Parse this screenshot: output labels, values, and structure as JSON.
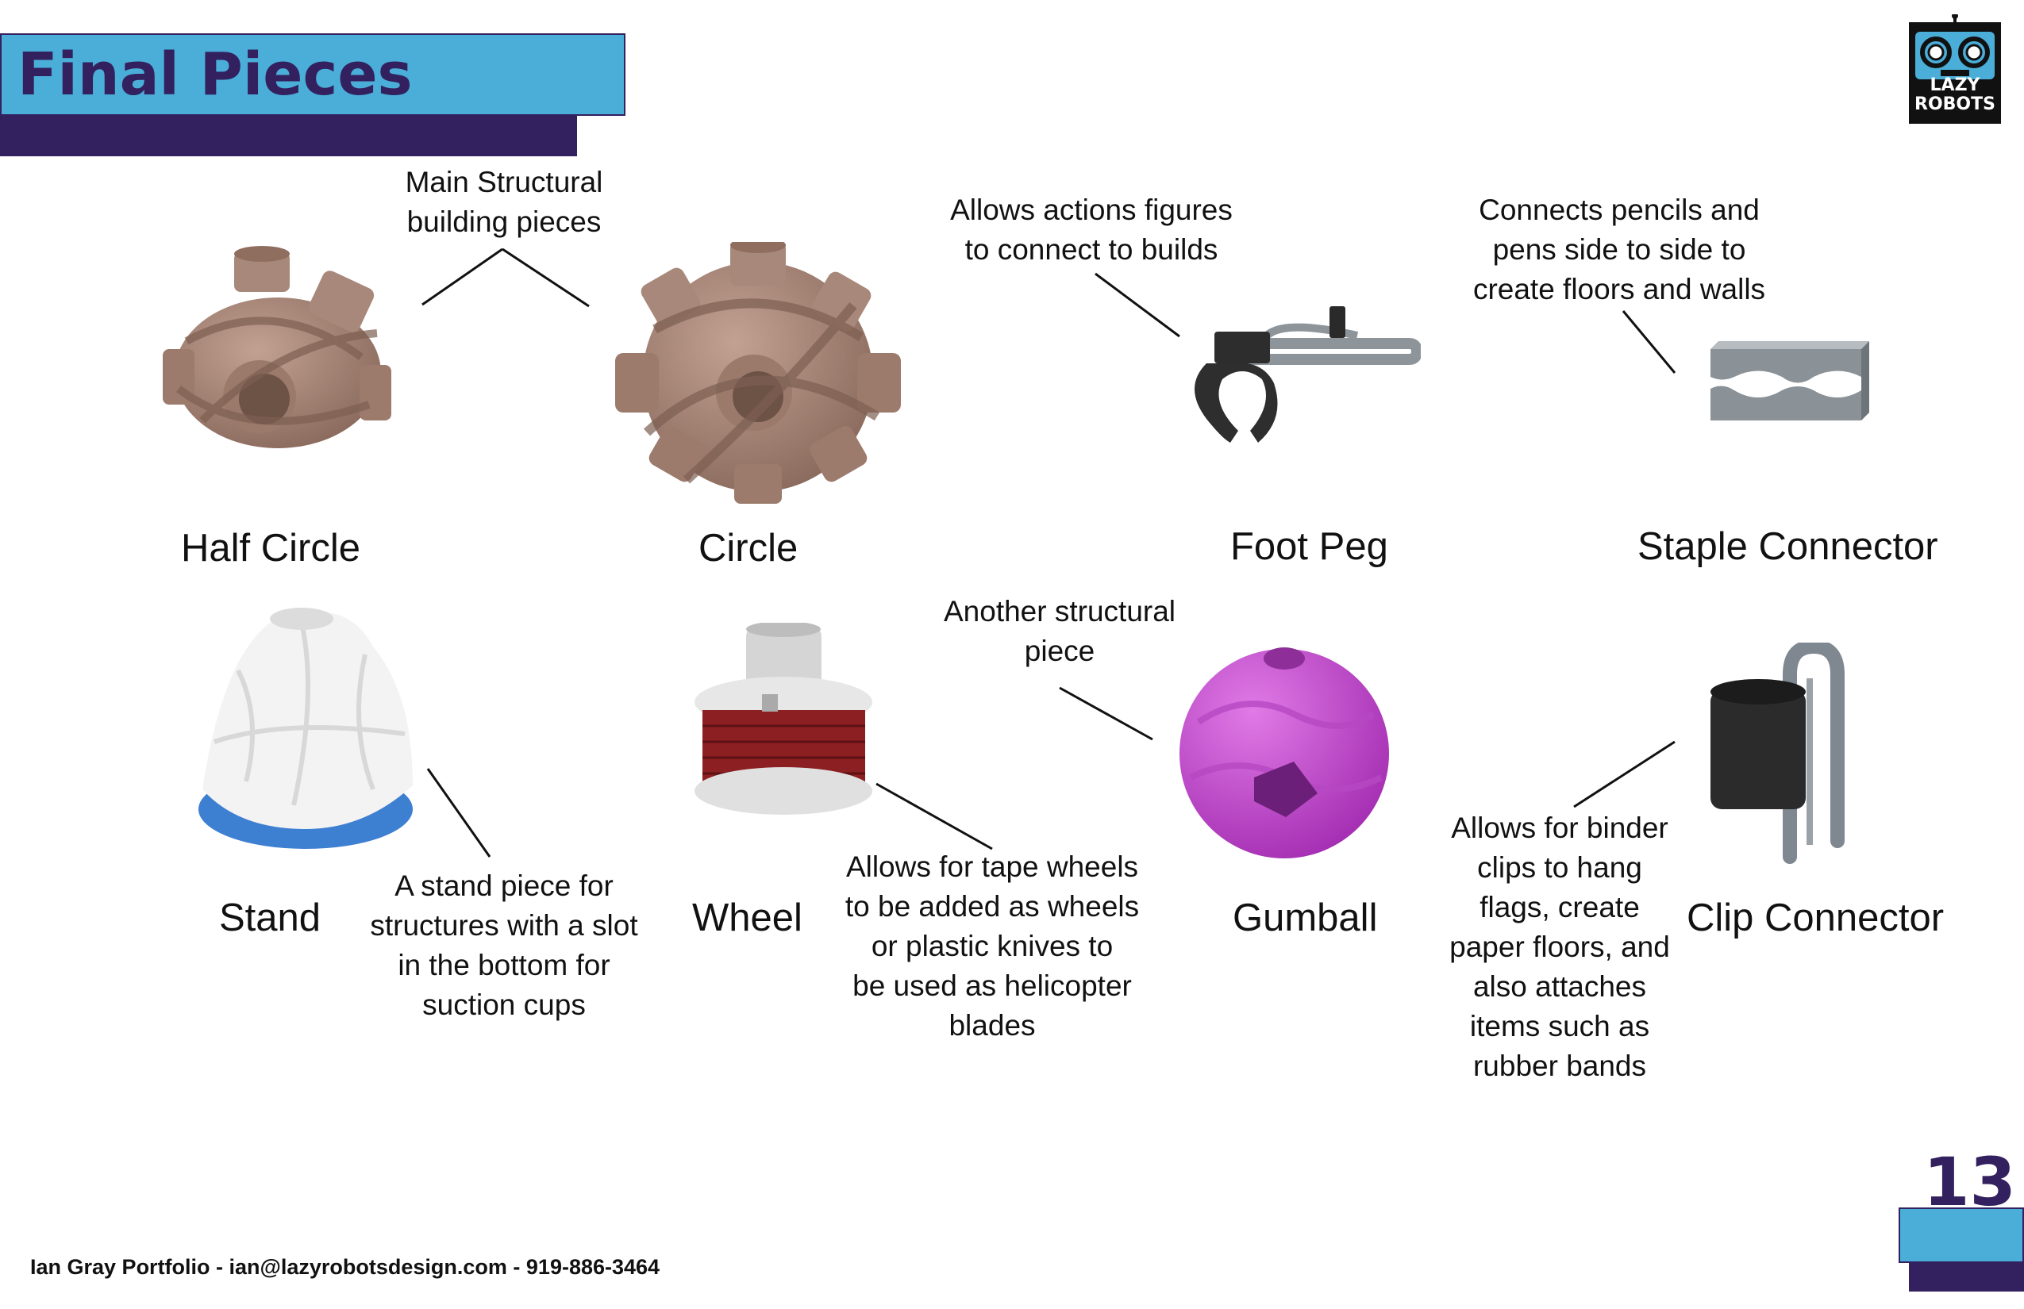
{
  "header": {
    "title": "Final Pieces"
  },
  "logo": {
    "line1": "LAZY",
    "line2": "ROBOTS",
    "icon": "robot-face-icon"
  },
  "colors": {
    "accent_blue": "#4aaed8",
    "accent_purple": "#33205e",
    "brown_piece": "#a07f72",
    "gumball": "#c045c8",
    "staple_gray": "#8a9298",
    "clip_gray": "#7f8890"
  },
  "pieces": [
    {
      "label": "Half Circle",
      "image": "half-circle-piece"
    },
    {
      "label": "Circle",
      "image": "circle-piece"
    },
    {
      "label": "Foot Peg",
      "image": "foot-peg-piece"
    },
    {
      "label": "Staple Connector",
      "image": "staple-connector-piece"
    },
    {
      "label": "Stand",
      "image": "stand-piece"
    },
    {
      "label": "Wheel",
      "image": "wheel-piece"
    },
    {
      "label": "Gumball",
      "image": "gumball-piece"
    },
    {
      "label": "Clip Connector",
      "image": "clip-connector-piece"
    }
  ],
  "notes": {
    "structural": [
      "Main Structural",
      "building pieces"
    ],
    "foot_peg": [
      "Allows actions figures",
      "to connect to builds"
    ],
    "staple": [
      "Connects pencils and",
      "pens side to side to",
      "create floors and walls"
    ],
    "gumball": [
      "Another structural",
      "piece"
    ],
    "stand": [
      "A stand piece for",
      "structures with a slot",
      "in the bottom for",
      "suction cups"
    ],
    "wheel": [
      "Allows for tape wheels",
      "to be added as wheels",
      "or plastic knives to",
      "be used as helicopter",
      "blades"
    ],
    "clip": [
      "Allows for binder",
      "clips to hang",
      "flags, create",
      "paper floors, and",
      "also attaches",
      "items such as",
      "rubber bands"
    ]
  },
  "footer": {
    "text": "Ian Gray Portfolio - ian@lazyrobotsdesign.com - 919-886-3464",
    "page_number": "13"
  }
}
